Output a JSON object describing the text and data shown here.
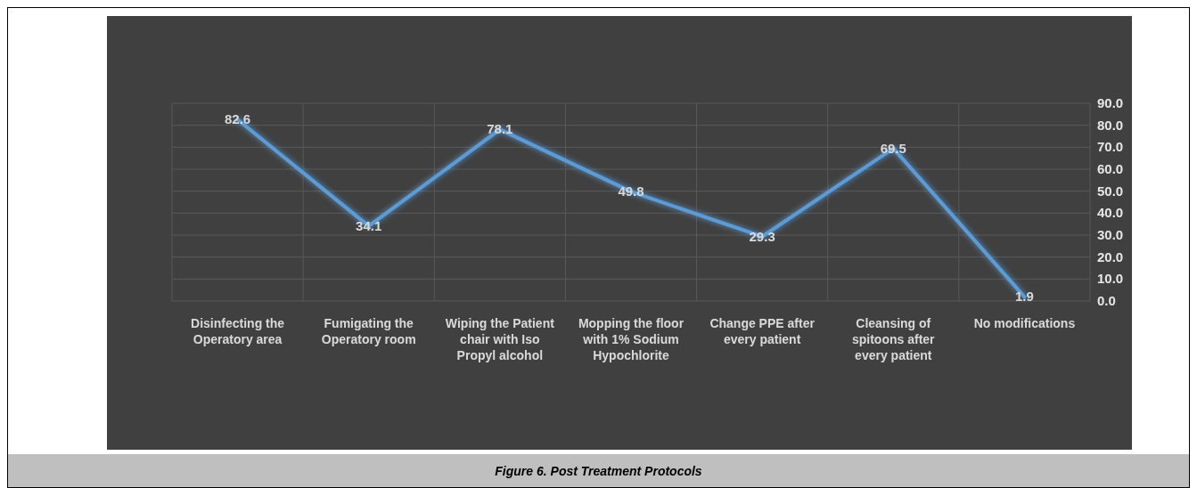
{
  "chart_data": {
    "type": "line",
    "title": "Figure 6. Post Treatment Protocols",
    "categories": [
      "Disinfecting the Operatory area",
      "Fumigating the Operatory room",
      "Wiping the Patient chair with Iso Propyl alcohol",
      "Mopping the floor with 1% Sodium Hypochlorite",
      "Change PPE after every patient",
      "Cleansing of spitoons after every patient",
      "No modifications"
    ],
    "series": [
      {
        "color": "#5b9bd5",
        "values": [
          82.6,
          34.1,
          78.1,
          49.8,
          29.3,
          69.5,
          1.9
        ]
      }
    ],
    "ylim": [
      0,
      90
    ],
    "yticks": [
      {
        "value": 0,
        "label": "0.0"
      },
      {
        "value": 10,
        "label": "10.0"
      },
      {
        "value": 20,
        "label": "20.0"
      },
      {
        "value": 30,
        "label": "30.0"
      },
      {
        "value": 40,
        "label": "40.0"
      },
      {
        "value": 50,
        "label": "50.0"
      },
      {
        "value": 60,
        "label": "60.0"
      },
      {
        "value": 70,
        "label": "70.0"
      },
      {
        "value": 80,
        "label": "80.0"
      },
      {
        "value": 90,
        "label": "90.0"
      }
    ],
    "grid": true,
    "data_labels": true,
    "marker": "none",
    "line_style": "solid"
  }
}
